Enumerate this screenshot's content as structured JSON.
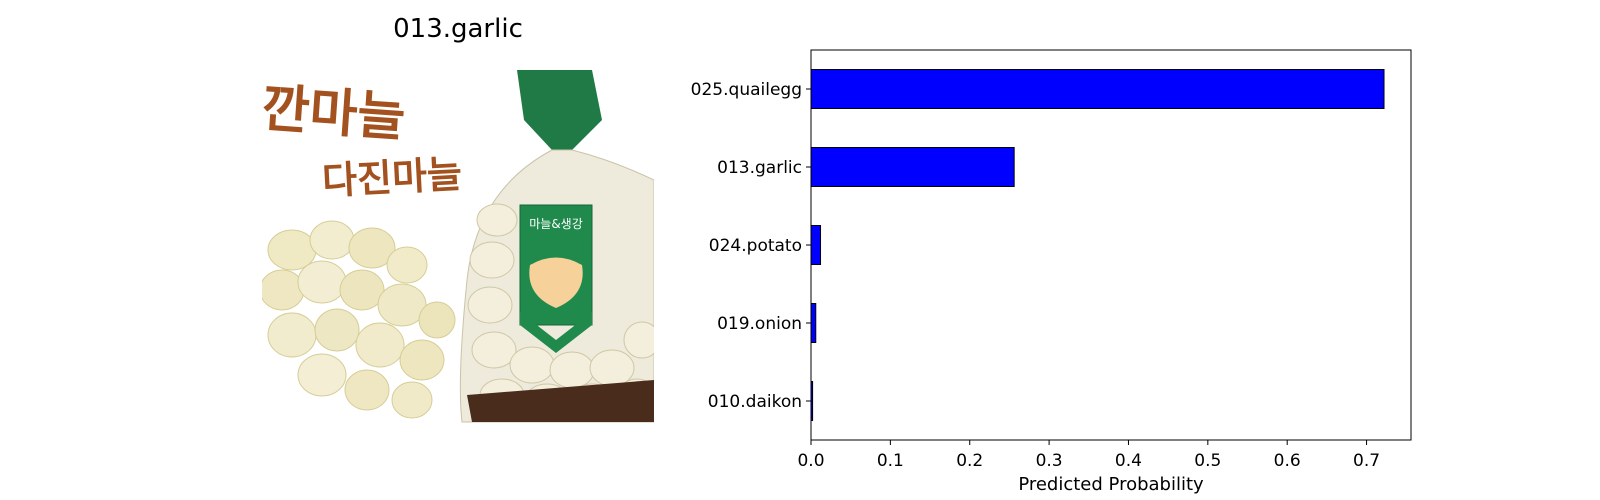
{
  "image_panel": {
    "title": "013.garlic",
    "photo_text": {
      "line1": "깐마늘",
      "line2": "다진마늘",
      "bag_label": "마늘&생강"
    }
  },
  "chart_data": {
    "type": "bar",
    "orientation": "horizontal",
    "categories": [
      "025.quailegg",
      "013.garlic",
      "024.potato",
      "019.onion",
      "010.daikon"
    ],
    "values": [
      0.722,
      0.256,
      0.012,
      0.006,
      0.002
    ],
    "xlabel": "Predicted Probability",
    "ylabel": "",
    "xlim": [
      0,
      0.756
    ],
    "xticks": [
      0.0,
      0.1,
      0.2,
      0.3,
      0.4,
      0.5,
      0.6,
      0.7
    ],
    "xtick_labels": [
      "0.0",
      "0.1",
      "0.2",
      "0.3",
      "0.4",
      "0.5",
      "0.6",
      "0.7"
    ],
    "grid": false,
    "bar_color": "#0000ff",
    "edge_color": "#000000"
  }
}
